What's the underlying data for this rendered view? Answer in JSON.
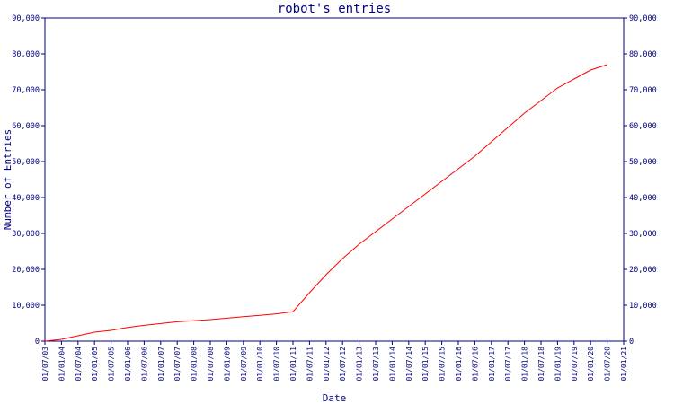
{
  "chart_data": {
    "type": "line",
    "title": "robot's entries",
    "xlabel": "Date",
    "ylabel": "Number of Entries",
    "ylim": [
      0,
      90000
    ],
    "y_ticks": [
      0,
      10000,
      20000,
      30000,
      40000,
      50000,
      60000,
      70000,
      80000,
      90000
    ],
    "y_tick_labels": [
      "0",
      "10,000",
      "20,000",
      "30,000",
      "40,000",
      "50,000",
      "60,000",
      "70,000",
      "80,000",
      "90,000"
    ],
    "x_tick_labels": [
      "01/07/03",
      "01/01/04",
      "01/07/04",
      "01/01/05",
      "01/07/05",
      "01/01/06",
      "01/07/06",
      "01/01/07",
      "01/07/07",
      "01/01/08",
      "01/07/08",
      "01/01/09",
      "01/07/09",
      "01/01/10",
      "01/07/10",
      "01/01/11",
      "01/07/11",
      "01/01/12",
      "01/07/12",
      "01/01/13",
      "01/07/13",
      "01/01/14",
      "01/07/14",
      "01/01/15",
      "01/07/15",
      "01/01/16",
      "01/07/16",
      "01/01/17",
      "01/07/17",
      "01/01/18",
      "01/07/18",
      "01/01/19",
      "01/07/19",
      "01/01/20",
      "01/07/20",
      "01/01/21"
    ],
    "grid": false,
    "line_color": "#ff0000",
    "axis_color": "#000080",
    "series": [
      {
        "x": [
          "01/07/03",
          "01/01/04",
          "01/07/04",
          "01/01/05",
          "01/07/05",
          "01/01/06",
          "01/07/06",
          "01/01/07",
          "01/07/07",
          "01/01/08",
          "01/07/08",
          "01/01/09",
          "01/07/09",
          "01/01/10",
          "01/07/10",
          "01/01/11",
          "01/07/11",
          "01/01/12",
          "01/07/12",
          "01/01/13",
          "01/07/13",
          "01/01/14",
          "01/07/14",
          "01/01/15",
          "01/07/15",
          "01/01/16",
          "01/07/16",
          "01/01/17",
          "01/07/17",
          "01/01/18",
          "01/07/18",
          "01/01/19",
          "01/07/19",
          "01/01/20",
          "01/07/20"
        ],
        "values": [
          0,
          500,
          1500,
          2500,
          3000,
          3800,
          4400,
          4900,
          5400,
          5700,
          6000,
          6400,
          6800,
          7200,
          7600,
          8200,
          13500,
          18500,
          23000,
          27000,
          30500,
          34000,
          37500,
          41000,
          44500,
          48000,
          51500,
          55500,
          59500,
          63500,
          67000,
          70500,
          73000,
          75500,
          77000
        ]
      }
    ]
  }
}
